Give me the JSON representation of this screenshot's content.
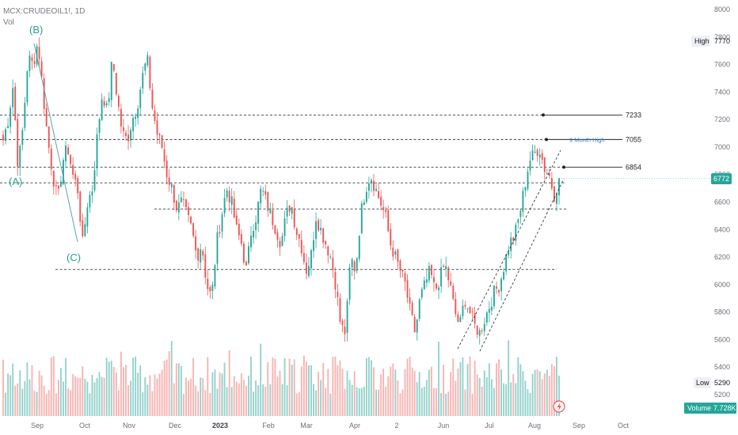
{
  "header": {
    "symbol": "MCX:CRUDEOIL1!, 1D",
    "volume_label": "Vol"
  },
  "price_axis": {
    "ticks": [
      "8000",
      "7800",
      "7600",
      "7400",
      "7200",
      "7000",
      "6800",
      "6600",
      "6400",
      "6200",
      "6000",
      "5800",
      "5600",
      "5400",
      "5200"
    ],
    "high_label": "High",
    "high_value": "7770",
    "low_label": "Low",
    "low_value": "5290",
    "last_value": "6772",
    "volume_label": "Volume",
    "volume_value": "7.728K"
  },
  "time_axis": {
    "labels": [
      "Sep",
      "Oct",
      "Nov",
      "Dec",
      "2023",
      "Feb",
      "Mar",
      "Apr",
      "2",
      "Jun",
      "Jul",
      "Aug",
      "Sep",
      "Oct"
    ]
  },
  "levels": [
    {
      "value": "7233"
    },
    {
      "value": "7055",
      "note": "9 Month High"
    },
    {
      "value": "6854"
    }
  ],
  "wave_labels": [
    "(B)",
    "(A)",
    "(C)"
  ],
  "colors": {
    "up": "#26a69a",
    "down": "#ef5350",
    "up_vol": "#93d2cc",
    "down_vol": "#f8b3b1",
    "last_price": "#26a69a",
    "wave": "#2a9d8f",
    "annotation": "#3b82b6"
  },
  "chart_data": {
    "type": "candlestick",
    "title": "MCX:CRUDEOIL1!, 1D",
    "ylim": [
      5150,
      8050
    ],
    "last_price": 6772,
    "high": 7770,
    "low": 5290,
    "volume_last": "7.728K",
    "horizontal_levels": [
      7233,
      7055,
      6854,
      6740,
      6550,
      6110
    ],
    "waves": [
      {
        "label": "(B)",
        "price": 7770
      },
      {
        "label": "(A)",
        "price": 6740
      },
      {
        "label": "(C)",
        "price": 6300
      }
    ],
    "close_path": [
      7050,
      7200,
      7450,
      6850,
      7150,
      7650,
      7600,
      7770,
      7400,
      7050,
      6800,
      6600,
      6900,
      7000,
      6800,
      6700,
      6300,
      6600,
      6700,
      7100,
      7400,
      7250,
      7650,
      7350,
      7100,
      7050,
      7200,
      7300,
      7500,
      7650,
      7300,
      7100,
      7000,
      6800,
      6700,
      6550,
      6600,
      6500,
      6400,
      6200,
      6300,
      6000,
      5900,
      6300,
      6500,
      6700,
      6600,
      6400,
      6300,
      6100,
      6400,
      6500,
      6700,
      6600,
      6500,
      6400,
      6300,
      6500,
      6600,
      6400,
      6300,
      6100,
      6200,
      6500,
      6400,
      6300,
      6200,
      6000,
      5700,
      5650,
      6200,
      6100,
      6500,
      6700,
      6800,
      6700,
      6600,
      6500,
      6300,
      6200,
      6100,
      6000,
      5800,
      5650,
      5900,
      6000,
      6100,
      5950,
      6050,
      6150,
      6000,
      5800,
      5700,
      5900,
      5800,
      5700,
      5650,
      5750,
      5850,
      5950,
      6000,
      6150,
      6300,
      6350,
      6500,
      6700,
      6900,
      6950,
      7000,
      6850,
      6800,
      6650,
      6772
    ]
  }
}
